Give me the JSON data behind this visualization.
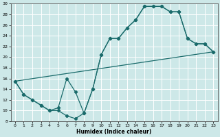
{
  "xlabel": "Humidex (Indice chaleur)",
  "xlim": [
    -0.5,
    23.5
  ],
  "ylim": [
    8,
    30
  ],
  "yticks": [
    8,
    10,
    12,
    14,
    16,
    18,
    20,
    22,
    24,
    26,
    28,
    30
  ],
  "xticks": [
    0,
    1,
    2,
    3,
    4,
    5,
    6,
    7,
    8,
    9,
    10,
    11,
    12,
    13,
    14,
    15,
    16,
    17,
    18,
    19,
    20,
    21,
    22,
    23
  ],
  "bg_color": "#cde8e8",
  "grid_color": "#ffffff",
  "line_color": "#1a6b6b",
  "line1_x": [
    0,
    1,
    2,
    3,
    4,
    5,
    6,
    7,
    8,
    9,
    10,
    11,
    12,
    13,
    14,
    15,
    16,
    17,
    18,
    19,
    20,
    21,
    22,
    23
  ],
  "line1_y": [
    15.5,
    13.0,
    12.0,
    11.0,
    10.0,
    10.0,
    9.0,
    8.5,
    9.5,
    14.0,
    20.5,
    23.5,
    23.5,
    25.5,
    27.0,
    29.5,
    29.5,
    29.5,
    28.5,
    28.5,
    23.5,
    22.5,
    22.5,
    21.0
  ],
  "line2_x": [
    0,
    1,
    2,
    3,
    4,
    5,
    6,
    7,
    8,
    9,
    10,
    11,
    12,
    13,
    14,
    15,
    16,
    17,
    18,
    19,
    20,
    21,
    22,
    23
  ],
  "line2_y": [
    15.5,
    13.0,
    12.0,
    11.0,
    10.0,
    10.5,
    16.0,
    13.5,
    9.5,
    14.0,
    20.5,
    23.5,
    23.5,
    25.5,
    27.0,
    29.5,
    29.5,
    29.5,
    28.5,
    28.5,
    23.5,
    22.5,
    22.5,
    21.0
  ],
  "line3_x": [
    0,
    23
  ],
  "line3_y": [
    15.5,
    21.0
  ]
}
